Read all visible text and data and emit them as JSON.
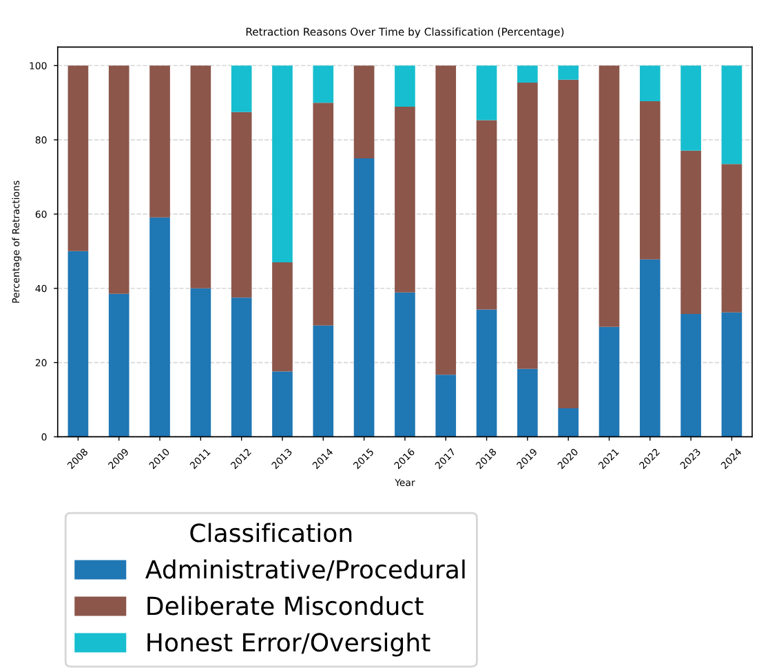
{
  "chart_data": {
    "type": "bar",
    "stacked": true,
    "title": "Retraction Reasons Over Time by Classification (Percentage)",
    "xlabel": "Year",
    "ylabel": "Percentage of Retractions",
    "legend_title": "Classification",
    "categories": [
      "2008",
      "2009",
      "2010",
      "2011",
      "2012",
      "2013",
      "2014",
      "2015",
      "2016",
      "2017",
      "2018",
      "2019",
      "2020",
      "2021",
      "2022",
      "2023",
      "2024"
    ],
    "series": [
      {
        "name": "Administrative/Procedural",
        "color": "#1f77b4",
        "values": [
          50,
          38.5,
          59.1,
          40,
          37.5,
          17.6,
          30,
          75,
          38.9,
          16.7,
          34.3,
          18.3,
          7.7,
          29.6,
          47.8,
          33.1,
          33.5
        ]
      },
      {
        "name": "Deliberate Misconduct",
        "color": "#8c564b",
        "values": [
          50,
          61.5,
          40.9,
          60,
          50,
          29.4,
          60,
          25,
          50,
          83.3,
          51,
          77.1,
          88.5,
          70.4,
          42.6,
          44,
          40
        ]
      },
      {
        "name": "Honest Error/Oversight",
        "color": "#17becf",
        "values": [
          0,
          0,
          0,
          0,
          12.5,
          53,
          10,
          0,
          11.1,
          0,
          14.7,
          4.6,
          3.8,
          0,
          9.6,
          22.9,
          26.5
        ]
      }
    ],
    "ylim": [
      0,
      105
    ],
    "yticks": [
      0,
      20,
      40,
      60,
      80,
      100
    ],
    "grid": "y",
    "legend": "bottom"
  }
}
